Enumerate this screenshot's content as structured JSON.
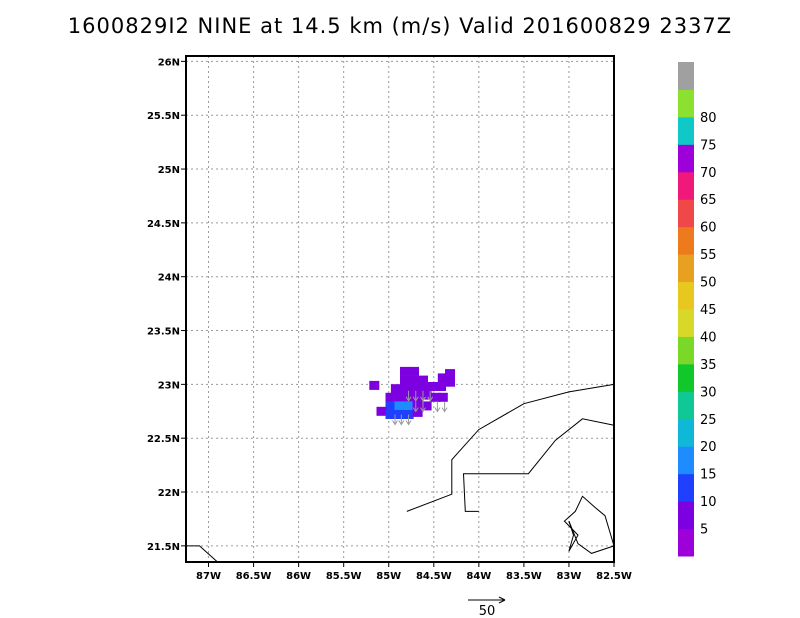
{
  "title": "1600829I2 NINE at 14.5 km (m/s) Valid 201600829 2337Z",
  "map": {
    "lon_range": [
      -87.25,
      -82.5
    ],
    "lat_range": [
      21.35,
      26.05
    ],
    "lon_ticks": [
      {
        "value": -87,
        "label": "87W"
      },
      {
        "value": -86.5,
        "label": "86.5W"
      },
      {
        "value": -86,
        "label": "86W"
      },
      {
        "value": -85.5,
        "label": "85.5W"
      },
      {
        "value": -85,
        "label": "85W"
      },
      {
        "value": -84.5,
        "label": "84.5W"
      },
      {
        "value": -84,
        "label": "84W"
      },
      {
        "value": -83.5,
        "label": "83.5W"
      },
      {
        "value": -83,
        "label": "83W"
      },
      {
        "value": -82.5,
        "label": "82.5W"
      }
    ],
    "lat_ticks": [
      {
        "value": 21.5,
        "label": "21.5N"
      },
      {
        "value": 22,
        "label": "22N"
      },
      {
        "value": 22.5,
        "label": "22.5N"
      },
      {
        "value": 23,
        "label": "23N"
      },
      {
        "value": 23.5,
        "label": "23.5N"
      },
      {
        "value": 24,
        "label": "24N"
      },
      {
        "value": 24.5,
        "label": "24.5N"
      },
      {
        "value": 25,
        "label": "25N"
      },
      {
        "value": 25.5,
        "label": "25.5N"
      },
      {
        "value": 26,
        "label": "26N"
      }
    ],
    "grid": "dotted",
    "coastlines": [
      [
        [
          -87.25,
          21.5
        ],
        [
          -87.1,
          21.5
        ],
        [
          -86.9,
          21.35
        ]
      ],
      [
        [
          -84.0,
          21.82
        ],
        [
          -84.15,
          21.82
        ],
        [
          -84.17,
          22.17
        ],
        [
          -83.45,
          22.17
        ],
        [
          -83.15,
          22.48
        ],
        [
          -82.85,
          22.68
        ],
        [
          -82.5,
          22.62
        ]
      ],
      [
        [
          -84.8,
          21.82
        ],
        [
          -84.3,
          21.98
        ],
        [
          -84.3,
          22.3
        ],
        [
          -84.0,
          22.58
        ],
        [
          -83.5,
          22.82
        ],
        [
          -83.0,
          22.93
        ],
        [
          -82.5,
          23.0
        ]
      ],
      [
        [
          -83.0,
          21.73
        ],
        [
          -82.9,
          21.52
        ],
        [
          -82.75,
          21.43
        ],
        [
          -82.5,
          21.5
        ]
      ],
      [
        [
          -83.0,
          21.73
        ],
        [
          -82.95,
          21.6
        ],
        [
          -83.0,
          21.45
        ],
        [
          -82.9,
          21.6
        ],
        [
          -83.05,
          21.73
        ],
        [
          -82.93,
          21.82
        ],
        [
          -82.85,
          21.96
        ],
        [
          -82.7,
          21.85
        ],
        [
          -82.6,
          21.78
        ],
        [
          -82.5,
          21.5
        ]
      ]
    ]
  },
  "cells": [
    {
      "lon": -85.16,
      "lat": 22.99,
      "level": 5
    },
    {
      "lon": -84.82,
      "lat": 23.12,
      "level": 5
    },
    {
      "lon": -84.72,
      "lat": 23.12,
      "level": 5
    },
    {
      "lon": -84.82,
      "lat": 23.04,
      "level": 5
    },
    {
      "lon": -84.72,
      "lat": 23.04,
      "level": 5
    },
    {
      "lon": -84.62,
      "lat": 23.04,
      "level": 5
    },
    {
      "lon": -84.32,
      "lat": 23.1,
      "level": 5
    },
    {
      "lon": -84.4,
      "lat": 23.06,
      "level": 5
    },
    {
      "lon": -84.32,
      "lat": 23.02,
      "level": 5
    },
    {
      "lon": -84.92,
      "lat": 22.96,
      "level": 5
    },
    {
      "lon": -84.82,
      "lat": 22.96,
      "level": 5
    },
    {
      "lon": -84.72,
      "lat": 22.96,
      "level": 5
    },
    {
      "lon": -84.62,
      "lat": 22.96,
      "level": 5
    },
    {
      "lon": -84.52,
      "lat": 22.98,
      "level": 5
    },
    {
      "lon": -84.42,
      "lat": 22.98,
      "level": 5
    },
    {
      "lon": -84.98,
      "lat": 22.88,
      "level": 5
    },
    {
      "lon": -84.88,
      "lat": 22.88,
      "level": 5
    },
    {
      "lon": -84.78,
      "lat": 22.88,
      "level": 5
    },
    {
      "lon": -84.68,
      "lat": 22.88,
      "level": 5
    },
    {
      "lon": -84.58,
      "lat": 22.9,
      "level": 5
    },
    {
      "lon": -84.48,
      "lat": 22.88,
      "level": 5
    },
    {
      "lon": -84.4,
      "lat": 22.88,
      "level": 5
    },
    {
      "lon": -84.98,
      "lat": 22.8,
      "level": 10
    },
    {
      "lon": -84.88,
      "lat": 22.8,
      "level": 15
    },
    {
      "lon": -84.78,
      "lat": 22.8,
      "level": 15
    },
    {
      "lon": -84.68,
      "lat": 22.8,
      "level": 5
    },
    {
      "lon": -84.58,
      "lat": 22.8,
      "level": 5
    },
    {
      "lon": -85.08,
      "lat": 22.75,
      "level": 5
    },
    {
      "lon": -84.98,
      "lat": 22.72,
      "level": 10
    },
    {
      "lon": -84.88,
      "lat": 22.72,
      "level": 10
    },
    {
      "lon": -84.78,
      "lat": 22.72,
      "level": 10
    },
    {
      "lon": -84.68,
      "lat": 22.74,
      "level": 5
    }
  ],
  "vectors": [
    {
      "lon": -84.93,
      "lat": 22.72
    },
    {
      "lon": -84.86,
      "lat": 22.72
    },
    {
      "lon": -84.78,
      "lat": 22.72
    },
    {
      "lon": -84.7,
      "lat": 22.84
    },
    {
      "lon": -84.62,
      "lat": 22.84
    },
    {
      "lon": -84.46,
      "lat": 22.84
    },
    {
      "lon": -84.38,
      "lat": 22.84
    },
    {
      "lon": -84.78,
      "lat": 22.94
    },
    {
      "lon": -84.7,
      "lat": 22.94
    },
    {
      "lon": -84.62,
      "lat": 22.94
    },
    {
      "lon": -84.54,
      "lat": 22.94
    }
  ],
  "colorbar": {
    "levels": [
      {
        "label": "",
        "color": "#9e00d9"
      },
      {
        "label": "5",
        "color": "#7d00e0"
      },
      {
        "label": "10",
        "color": "#2040ff"
      },
      {
        "label": "15",
        "color": "#1e8cff"
      },
      {
        "label": "20",
        "color": "#10b8d8"
      },
      {
        "label": "25",
        "color": "#10c896"
      },
      {
        "label": "30",
        "color": "#10c82a"
      },
      {
        "label": "35",
        "color": "#7ad828"
      },
      {
        "label": "40",
        "color": "#d8d828"
      },
      {
        "label": "45",
        "color": "#e8c81e"
      },
      {
        "label": "50",
        "color": "#e8a020"
      },
      {
        "label": "55",
        "color": "#ee7a1e"
      },
      {
        "label": "60",
        "color": "#f04848"
      },
      {
        "label": "65",
        "color": "#f01878"
      },
      {
        "label": "70",
        "color": "#9e00d9"
      },
      {
        "label": "75",
        "color": "#10c8c8"
      },
      {
        "label": "80",
        "color": "#8ce030"
      },
      {
        "label": "",
        "color": "#a0a0a0"
      }
    ]
  },
  "reference_vector": {
    "label": "50"
  }
}
